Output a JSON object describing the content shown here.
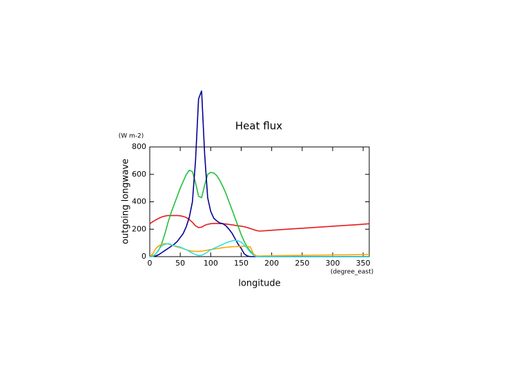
{
  "chart_data": {
    "type": "line",
    "title": "Heat flux",
    "x_label": "longitude",
    "x_unit": "(degree_east)",
    "y_label": "outgoing longwave",
    "y_unit": "(W m-2)",
    "x": [
      0,
      5,
      10,
      15,
      20,
      25,
      30,
      35,
      40,
      45,
      50,
      55,
      60,
      65,
      70,
      75,
      80,
      85,
      90,
      95,
      100,
      105,
      110,
      115,
      120,
      125,
      130,
      135,
      140,
      145,
      150,
      155,
      160,
      165,
      170,
      175,
      180,
      220,
      260,
      300,
      340,
      360
    ],
    "series": [
      {
        "color": "#e41a1c",
        "values": [
          240,
          255,
          268,
          280,
          290,
          296,
          300,
          300,
          300,
          300,
          298,
          293,
          285,
          270,
          250,
          225,
          212,
          215,
          228,
          236,
          240,
          242,
          242,
          241,
          240,
          238,
          235,
          232,
          228,
          225,
          222,
          218,
          212,
          205,
          197,
          190,
          186,
          198,
          210,
          222,
          233,
          240
        ]
      },
      {
        "color": "#1fbf3a",
        "values": [
          0,
          5,
          20,
          50,
          100,
          170,
          250,
          320,
          380,
          440,
          500,
          550,
          600,
          630,
          620,
          540,
          440,
          430,
          520,
          600,
          615,
          610,
          590,
          555,
          510,
          460,
          400,
          340,
          280,
          220,
          160,
          110,
          70,
          40,
          15,
          5,
          0,
          0,
          0,
          0,
          0,
          0
        ]
      },
      {
        "color": "#000090",
        "values": [
          0,
          2,
          5,
          15,
          30,
          45,
          60,
          75,
          90,
          110,
          140,
          170,
          220,
          290,
          400,
          700,
          1150,
          1210,
          750,
          430,
          330,
          280,
          260,
          245,
          240,
          225,
          200,
          170,
          130,
          90,
          60,
          20,
          5,
          0,
          0,
          0,
          0,
          0,
          0,
          0,
          0,
          0
        ]
      },
      {
        "color": "#ffa500",
        "values": [
          0,
          20,
          60,
          80,
          90,
          95,
          92,
          85,
          78,
          70,
          65,
          58,
          50,
          44,
          40,
          38,
          38,
          40,
          44,
          48,
          52,
          55,
          58,
          62,
          65,
          68,
          70,
          72,
          73,
          74,
          75,
          76,
          75,
          70,
          20,
          5,
          5,
          8,
          10,
          12,
          14,
          15
        ]
      },
      {
        "color": "#33dde0",
        "values": [
          0,
          0,
          20,
          55,
          80,
          90,
          95,
          88,
          80,
          75,
          70,
          60,
          50,
          38,
          25,
          15,
          8,
          10,
          20,
          35,
          50,
          60,
          70,
          80,
          90,
          100,
          108,
          115,
          118,
          115,
          105,
          85,
          60,
          30,
          10,
          0,
          0,
          0,
          0,
          0,
          0,
          0
        ]
      }
    ],
    "xlim": [
      0,
      360
    ],
    "xticks": [
      0,
      50,
      100,
      150,
      200,
      250,
      300,
      350
    ],
    "ylim": [
      0,
      800
    ],
    "yticks": [
      0,
      200,
      400,
      600,
      800
    ]
  }
}
